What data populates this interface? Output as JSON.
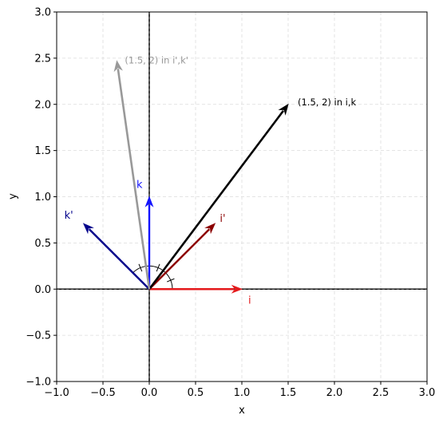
{
  "chart_data": {
    "type": "vector-plot",
    "title": "",
    "xlabel": "x",
    "ylabel": "y",
    "xlim": [
      -1.0,
      3.0
    ],
    "ylim": [
      -1.0,
      3.0
    ],
    "xticks": [
      "−1.0",
      "−0.5",
      "0.0",
      "0.5",
      "1.0",
      "1.5",
      "2.0",
      "2.5",
      "3.0"
    ],
    "yticks": [
      "−1.0",
      "−0.5",
      "0.0",
      "0.5",
      "1.0",
      "1.5",
      "2.0",
      "2.5",
      "3.0"
    ],
    "xtick_values": [
      -1.0,
      -0.5,
      0.0,
      0.5,
      1.0,
      1.5,
      2.0,
      2.5,
      3.0
    ],
    "ytick_values": [
      -1.0,
      -0.5,
      0.0,
      0.5,
      1.0,
      1.5,
      2.0,
      2.5,
      3.0
    ],
    "grid": true,
    "vectors": [
      {
        "id": "i",
        "x": 1.0,
        "y": 0.0,
        "color": "#e41a1c",
        "label": "i"
      },
      {
        "id": "k",
        "x": 0.0,
        "y": 1.0,
        "color": "#1414ff",
        "label": "k"
      },
      {
        "id": "i_prime",
        "x": 0.71,
        "y": 0.71,
        "color": "#8b0000",
        "label": "i'"
      },
      {
        "id": "k_prime",
        "x": -0.71,
        "y": 0.71,
        "color": "#00008b",
        "label": "k'"
      },
      {
        "id": "v_ik",
        "x": 1.5,
        "y": 2.0,
        "color": "#000000",
        "label": "(1.5, 2) in i,k"
      },
      {
        "id": "v_ikp",
        "x": -0.35,
        "y": 2.47,
        "color": "#999999",
        "label": "(1.5, 2) in i',k'"
      }
    ]
  }
}
